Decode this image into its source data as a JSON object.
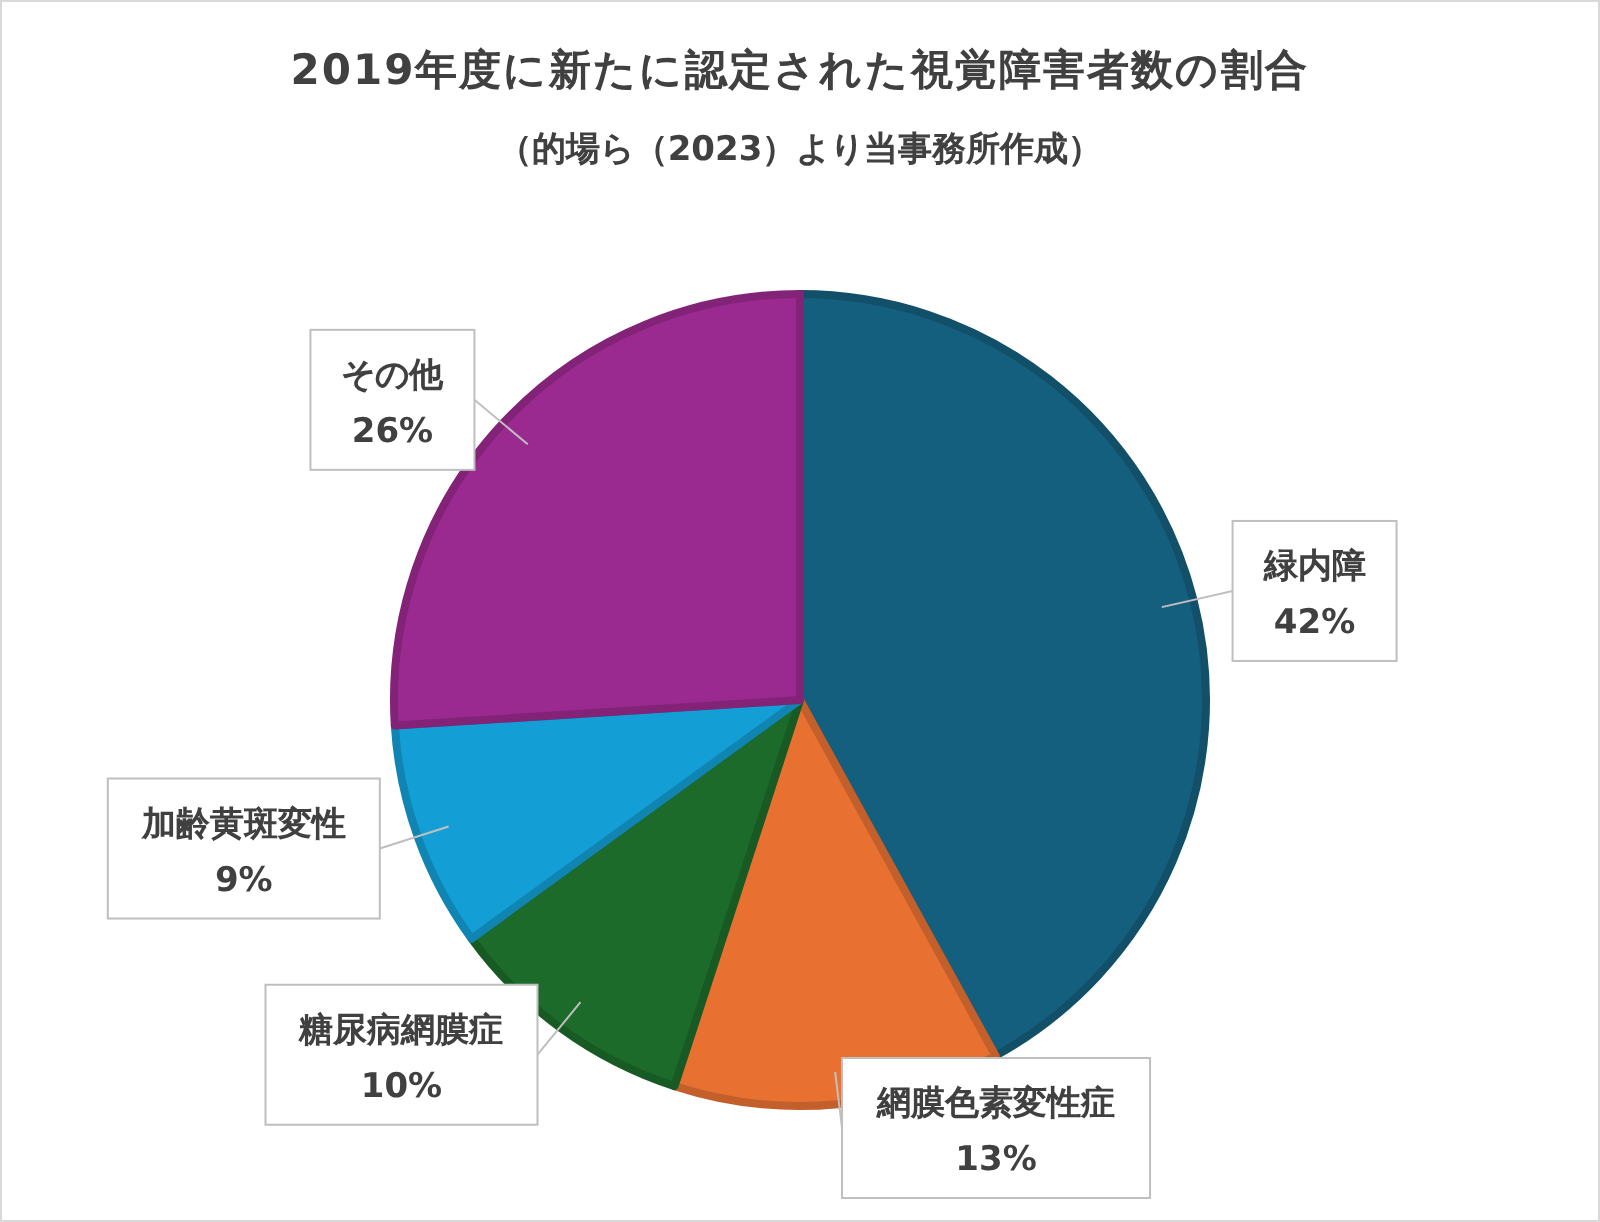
{
  "chart_data": {
    "type": "pie",
    "title": "2019年度に新たに認定された視覚障害者数の割合",
    "subtitle": "（的場ら（2023）より当事務所作成）",
    "categories": [
      "緑内障",
      "網膜色素変性症",
      "糖尿病網膜症",
      "加齢黄斑変性",
      "その他"
    ],
    "values": [
      42,
      13,
      10,
      9,
      26
    ],
    "colors": [
      "#155f7e",
      "#e87132",
      "#1d6b2a",
      "#139fd5",
      "#9b2a90"
    ],
    "value_labels": [
      "42%",
      "13%",
      "10%",
      "9%",
      "26%"
    ],
    "legend": false
  }
}
